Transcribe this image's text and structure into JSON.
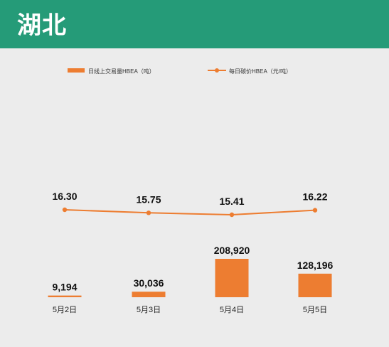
{
  "header": {
    "title": "湖北"
  },
  "colors": {
    "header_bg": "#259b78",
    "series": "#ed7d31",
    "background": "#ececec"
  },
  "chart_data": {
    "type": "bar",
    "categories": [
      "5月2日",
      "5月3日",
      "5月4日",
      "5月5日"
    ],
    "series": [
      {
        "name": "日线上交易量HBEA（吨）",
        "type": "bar",
        "values": [
          9194,
          30036,
          208920,
          128196
        ],
        "labels": [
          "9,194",
          "30,036",
          "208,920",
          "128,196"
        ]
      },
      {
        "name": "每日碳价HBEA（元/吨）",
        "type": "line",
        "values": [
          16.3,
          15.75,
          15.41,
          16.22
        ],
        "labels": [
          "16.30",
          "15.75",
          "15.41",
          "16.22"
        ]
      }
    ],
    "legend": "top-left",
    "grid": false
  }
}
